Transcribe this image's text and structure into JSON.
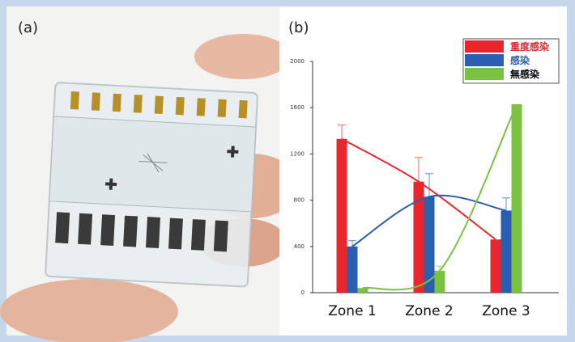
{
  "panel_labels": [
    "(a)",
    "(b)"
  ],
  "chart_data": {
    "type": "bar",
    "categories": [
      "Zone 1",
      "Zone 2",
      "Zone 3"
    ],
    "series": [
      {
        "name": "重度感染",
        "color": "#e8262b",
        "legend_text_color": "#e8262b",
        "values": [
          1330,
          960,
          460
        ],
        "errors": [
          120,
          210,
          null
        ]
      },
      {
        "name": "感染",
        "color": "#2a5fb0",
        "legend_text_color": "#2a5fb0",
        "values": [
          400,
          830,
          710
        ],
        "errors": [
          50,
          200,
          110
        ]
      },
      {
        "name": "無感染",
        "color": "#7cc242",
        "legend_text_color": "#000000",
        "values": [
          40,
          190,
          1630
        ],
        "errors": [
          null,
          40,
          null
        ]
      }
    ],
    "ylim": [
      0,
      2000
    ],
    "yticks": [
      0,
      400,
      800,
      1200,
      1600,
      2000
    ],
    "trend_lines": true
  }
}
